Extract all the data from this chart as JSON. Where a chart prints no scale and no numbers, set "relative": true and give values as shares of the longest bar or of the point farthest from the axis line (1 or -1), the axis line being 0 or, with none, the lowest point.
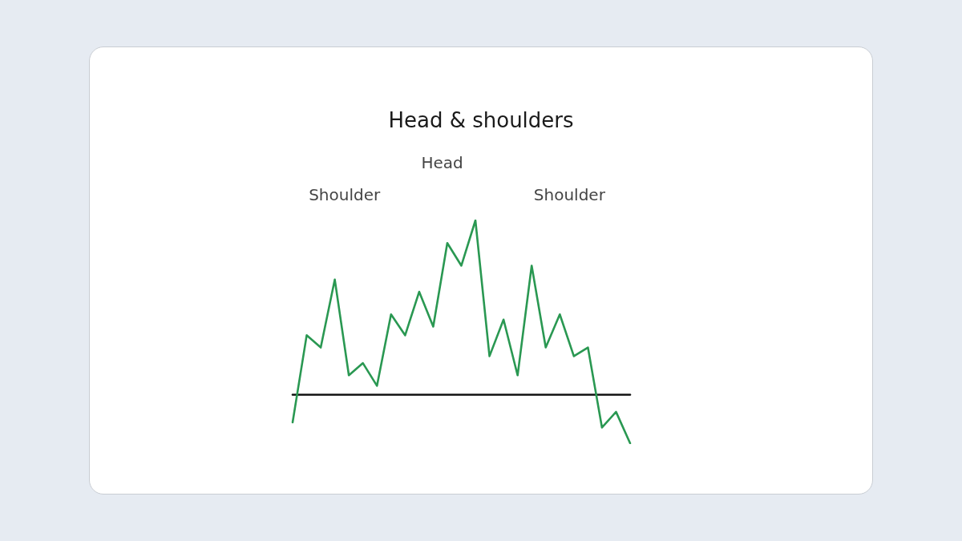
{
  "chart_data": {
    "type": "line",
    "title": "Head & shoulders",
    "relative": true,
    "grid": false,
    "marker": "none",
    "line_style": "solid",
    "categories": [
      null,
      null,
      null,
      null,
      null,
      null,
      null,
      null,
      null,
      null,
      null,
      null,
      null,
      null,
      null,
      null,
      null,
      null,
      null,
      null,
      null,
      null,
      null,
      null,
      null
    ],
    "series": [
      {
        "color": "#2a9852",
        "values": [
          -0.16,
          0.34,
          0.27,
          0.66,
          0.11,
          0.18,
          0.05,
          0.46,
          0.34,
          0.59,
          0.39,
          0.87,
          0.74,
          1,
          0.22,
          0.43,
          0.11,
          0.74,
          0.27,
          0.46,
          0.22,
          0.27,
          -0.19,
          -0.1,
          -0.28
        ]
      }
    ],
    "annotations": [
      "Shoulder",
      "Head",
      "Shoulder"
    ]
  }
}
